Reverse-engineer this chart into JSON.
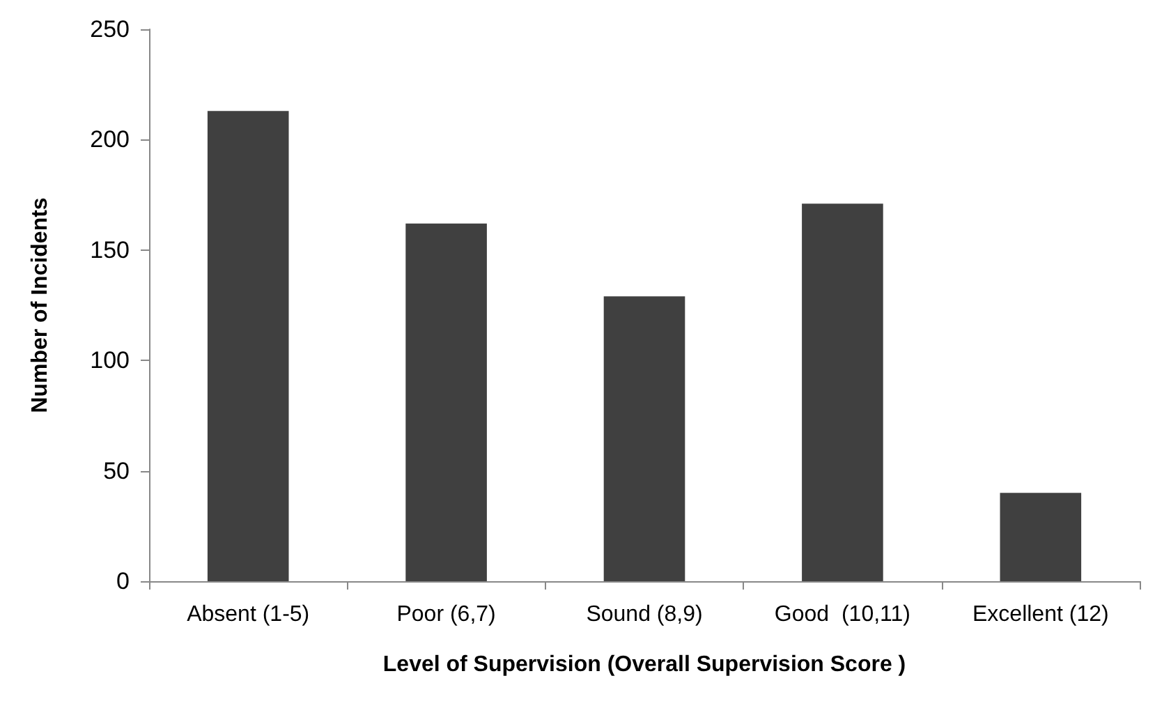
{
  "chart_data": {
    "type": "bar",
    "xlabel": "Level of Supervision (Overall Supervision Score )",
    "ylabel": "Number of Incidents",
    "categories": [
      "Absent (1-5)",
      "Poor (6,7)",
      "Sound (8,9)",
      "Good  (10,11)",
      "Excellent (12)"
    ],
    "values": [
      213,
      162,
      129,
      171,
      40
    ],
    "color": "#404040",
    "ylim": [
      0,
      250
    ],
    "yticks": [
      0,
      50,
      100,
      150,
      200,
      250
    ],
    "grid": false
  }
}
